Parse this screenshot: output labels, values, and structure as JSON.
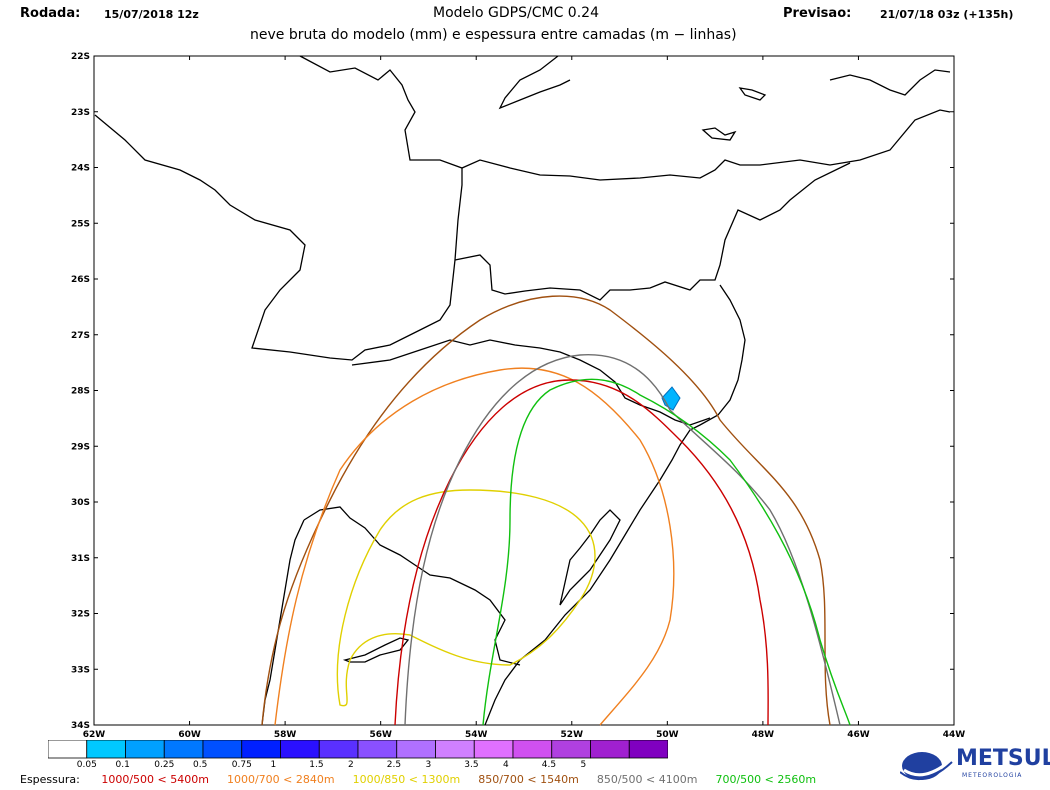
{
  "header": {
    "run_label": "Rodada:",
    "run_value": "15/07/2018 12z",
    "model": "Modelo GDPS/CMC 0.24",
    "forecast_label": "Previsao:",
    "forecast_value": "21/07/18 03z (+135h)",
    "subtitle": "neve bruta do modelo (mm) e espessura entre camadas (m − linhas)"
  },
  "lat_ticks": [
    "22S",
    "23S",
    "24S",
    "25S",
    "26S",
    "27S",
    "28S",
    "29S",
    "30S",
    "31S",
    "32S",
    "33S",
    "34S"
  ],
  "lon_ticks": [
    "62W",
    "60W",
    "58W",
    "56W",
    "54W",
    "52W",
    "50W",
    "48W",
    "46W",
    "44W"
  ],
  "colorbar": {
    "colors": [
      "#ffffff",
      "#00c8ff",
      "#00a0ff",
      "#0078ff",
      "#0050ff",
      "#0020ff",
      "#2a10ff",
      "#5a30ff",
      "#8a50ff",
      "#b070ff",
      "#d080ff",
      "#e070ff",
      "#d050f0",
      "#b040e0",
      "#a020d0",
      "#8000c0"
    ],
    "labels": [
      "0.05",
      "0.1",
      "0.25",
      "0.5",
      "0.75",
      "1",
      "1.5",
      "2",
      "2.5",
      "3",
      "3.5",
      "4",
      "4.5",
      "5"
    ]
  },
  "legend": {
    "title": "Espessura:",
    "items": [
      {
        "text": "1000/500 < 5400m",
        "color": "#cc0000"
      },
      {
        "text": "1000/700 < 2840m",
        "color": "#f08020"
      },
      {
        "text": "1000/850 < 1300m",
        "color": "#e0d000"
      },
      {
        "text": "850/700 < 1540m",
        "color": "#a05010"
      },
      {
        "text": "850/500 < 4100m",
        "color": "#707070"
      },
      {
        "text": "700/500 < 2560m",
        "color": "#10c010"
      }
    ]
  },
  "logo": {
    "text": "METSUL",
    "subtext": "METEOROLOGIA"
  }
}
